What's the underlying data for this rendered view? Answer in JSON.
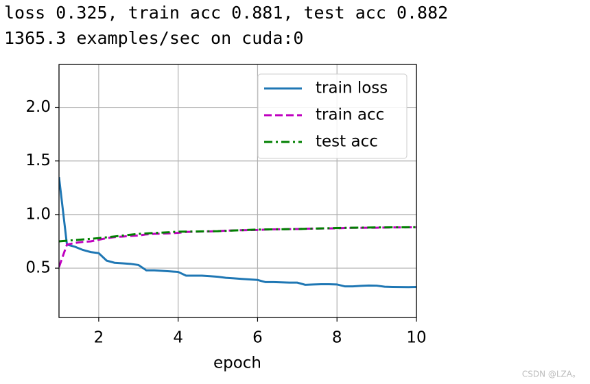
{
  "chart_data": {
    "type": "line",
    "title": "loss 0.325, train acc 0.881, test acc 0.882",
    "subtitle": "1365.3 examples/sec on cuda:0",
    "x_label": "epoch",
    "watermark": "CSDN @LZA。",
    "xlim": [
      1,
      10
    ],
    "xticks": [
      2,
      4,
      6,
      8,
      10
    ],
    "ylim": [
      0.04,
      2.4
    ],
    "yticks": [
      0.5,
      {
        "value": 1,
        "label": "1.0"
      },
      1.5,
      {
        "value": 2,
        "label": "2.0"
      }
    ],
    "grid": true,
    "legend": "upper right",
    "series": [
      {
        "name": "train loss",
        "color": "#1f77b4",
        "linestyle": "solid",
        "x": [
          1.0,
          1.2,
          1.4,
          1.6,
          1.8,
          2.0,
          2.2,
          2.4,
          2.6,
          2.8,
          3.0,
          3.2,
          3.4,
          3.6,
          3.8,
          4.0,
          4.2,
          4.4,
          4.6,
          4.8,
          5.0,
          5.2,
          5.4,
          5.6,
          5.8,
          6.0,
          6.2,
          6.4,
          6.6,
          6.8,
          7.0,
          7.2,
          7.4,
          7.6,
          7.8,
          8.0,
          8.2,
          8.4,
          8.6,
          8.8,
          9.0,
          9.2,
          9.4,
          9.6,
          9.8,
          10.0
        ],
        "values": [
          1.35,
          0.72,
          0.7,
          0.67,
          0.65,
          0.64,
          0.57,
          0.55,
          0.545,
          0.54,
          0.53,
          0.48,
          0.48,
          0.475,
          0.47,
          0.465,
          0.43,
          0.43,
          0.43,
          0.425,
          0.42,
          0.41,
          0.405,
          0.4,
          0.395,
          0.39,
          0.37,
          0.37,
          0.368,
          0.365,
          0.365,
          0.345,
          0.348,
          0.35,
          0.35,
          0.348,
          0.33,
          0.33,
          0.335,
          0.338,
          0.337,
          0.327,
          0.325,
          0.324,
          0.323,
          0.325
        ]
      },
      {
        "name": "train acc",
        "color": "#bf00bf",
        "linestyle": "dashed",
        "x": [
          1.0,
          1.2,
          1.4,
          1.6,
          1.8,
          2.0,
          2.2,
          2.4,
          2.6,
          2.8,
          3.0,
          3.2,
          3.4,
          3.6,
          3.8,
          4.0,
          4.2,
          4.4,
          4.6,
          4.8,
          5.0,
          5.2,
          5.4,
          5.6,
          5.8,
          6.0,
          6.2,
          6.4,
          6.6,
          6.8,
          7.0,
          7.2,
          7.4,
          7.6,
          7.8,
          8.0,
          8.2,
          8.4,
          8.6,
          8.8,
          9.0,
          9.2,
          9.4,
          9.6,
          9.8,
          10.0
        ],
        "values": [
          0.51,
          0.72,
          0.735,
          0.745,
          0.75,
          0.765,
          0.78,
          0.79,
          0.795,
          0.8,
          0.805,
          0.815,
          0.82,
          0.822,
          0.825,
          0.83,
          0.838,
          0.84,
          0.842,
          0.843,
          0.845,
          0.85,
          0.852,
          0.854,
          0.855,
          0.856,
          0.86,
          0.862,
          0.863,
          0.864,
          0.865,
          0.868,
          0.869,
          0.87,
          0.871,
          0.872,
          0.875,
          0.876,
          0.876,
          0.877,
          0.877,
          0.879,
          0.88,
          0.88,
          0.881,
          0.881
        ]
      },
      {
        "name": "test acc",
        "color": "#008000",
        "linestyle": "dashdot",
        "x": [
          1,
          2,
          3,
          4,
          5,
          6,
          7,
          8,
          9,
          10
        ],
        "values": [
          0.75,
          0.78,
          0.82,
          0.84,
          0.845,
          0.86,
          0.865,
          0.875,
          0.88,
          0.882
        ]
      }
    ]
  }
}
